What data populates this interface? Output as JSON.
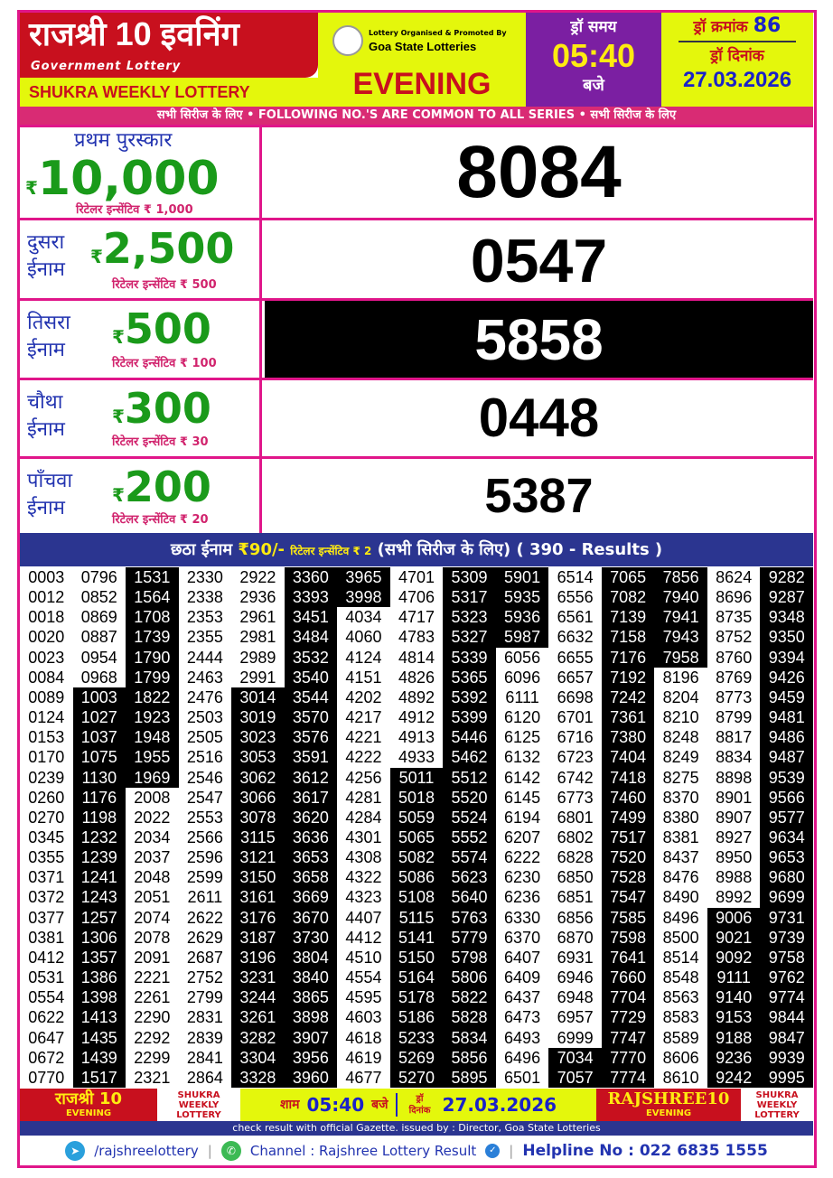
{
  "header": {
    "title": "राजश्री 10 इवनिंग",
    "subtitle": "Government Lottery",
    "lottery_name": "SHUKRA WEEKLY LOTTERY",
    "organised_by": "Lottery Organised & Promoted By",
    "organiser": "Goa State Lotteries",
    "session": "EVENING",
    "draw_time_label": "ड्रॉ समय",
    "draw_time": "05:40",
    "draw_time_suffix": "बजे",
    "draw_no_label": "ड्रॉ क्रमांक",
    "draw_no": "86",
    "draw_date_label": "ड्रॉ दिनांक",
    "draw_date": "27.03.2026"
  },
  "banner": "सभी सिरीज के लिए  •  FOLLOWING NO.'S ARE COMMON TO ALL SERIES  • सभी सिरीज के लिए",
  "prizes": [
    {
      "name": "प्रथम पुरस्कार",
      "currency": "₹",
      "amount": "10,000",
      "retailer": "रिटेलर इन्सेंटिव ₹ 1,000",
      "number": "8084"
    },
    {
      "name1": "दुसरा",
      "name2": "ईनाम",
      "currency": "₹",
      "amount": "2,500",
      "retailer": "रिटेलर इन्सेंटिव ₹ 500",
      "number": "0547"
    },
    {
      "name1": "तिसरा",
      "name2": "ईनाम",
      "currency": "₹",
      "amount": "500",
      "retailer": "रिटेलर इन्सेंटिव ₹ 100",
      "number": "5858"
    },
    {
      "name1": "चौथा",
      "name2": "ईनाम",
      "currency": "₹",
      "amount": "300",
      "retailer": "रिटेलर इन्सेंटिव ₹ 30",
      "number": "0448"
    },
    {
      "name1": "पाँचवा",
      "name2": "ईनाम",
      "currency": "₹",
      "amount": "200",
      "retailer": "रिटेलर इन्सेंटिव ₹ 20",
      "number": "5387"
    }
  ],
  "sixth": {
    "name": "छठा ईनाम",
    "amount": "₹90/-",
    "retailer": "रिटेलर इन्सेंटिव ₹ 2",
    "note": "(सभी सिरीज के लिए)",
    "count": "( 390 - Results )"
  },
  "results_columns": [
    [
      "0003",
      "0012",
      "0018",
      "0020",
      "0023",
      "0084",
      "0089",
      "0124",
      "0153",
      "0170",
      "0239",
      "0260",
      "0270",
      "0345",
      "0355",
      "0371",
      "0372",
      "0377",
      "0381",
      "0412",
      "0531",
      "0554",
      "0622",
      "0647",
      "0672",
      "0770"
    ],
    [
      "0796",
      "0852",
      "0869",
      "0887",
      "0954",
      "0968",
      "1003",
      "1027",
      "1037",
      "1075",
      "1130",
      "1176",
      "1198",
      "1232",
      "1239",
      "1241",
      "1243",
      "1257",
      "1306",
      "1357",
      "1386",
      "1398",
      "1413",
      "1435",
      "1439",
      "1517"
    ],
    [
      "1531",
      "1564",
      "1708",
      "1739",
      "1790",
      "1799",
      "1822",
      "1923",
      "1948",
      "1955",
      "1969",
      "2008",
      "2022",
      "2034",
      "2037",
      "2048",
      "2051",
      "2074",
      "2078",
      "2091",
      "2221",
      "2261",
      "2290",
      "2292",
      "2299",
      "2321"
    ],
    [
      "2330",
      "2338",
      "2353",
      "2355",
      "2444",
      "2463",
      "2476",
      "2503",
      "2505",
      "2516",
      "2546",
      "2547",
      "2553",
      "2566",
      "2596",
      "2599",
      "2611",
      "2622",
      "2629",
      "2687",
      "2752",
      "2799",
      "2831",
      "2839",
      "2841",
      "2864"
    ],
    [
      "2922",
      "2936",
      "2961",
      "2981",
      "2989",
      "2991",
      "3014",
      "3019",
      "3023",
      "3053",
      "3062",
      "3066",
      "3078",
      "3115",
      "3121",
      "3150",
      "3161",
      "3176",
      "3187",
      "3196",
      "3231",
      "3244",
      "3261",
      "3282",
      "3304",
      "3328"
    ],
    [
      "3360",
      "3393",
      "3451",
      "3484",
      "3532",
      "3540",
      "3544",
      "3570",
      "3576",
      "3591",
      "3612",
      "3617",
      "3620",
      "3636",
      "3653",
      "3658",
      "3669",
      "3670",
      "3730",
      "3804",
      "3840",
      "3865",
      "3898",
      "3907",
      "3956",
      "3960"
    ],
    [
      "3965",
      "3998",
      "4034",
      "4060",
      "4124",
      "4151",
      "4202",
      "4217",
      "4221",
      "4222",
      "4256",
      "4281",
      "4284",
      "4301",
      "4308",
      "4322",
      "4323",
      "4407",
      "4412",
      "4510",
      "4554",
      "4595",
      "4603",
      "4618",
      "4619",
      "4677"
    ],
    [
      "4701",
      "4706",
      "4717",
      "4783",
      "4814",
      "4826",
      "4892",
      "4912",
      "4913",
      "4933",
      "5011",
      "5018",
      "5059",
      "5065",
      "5082",
      "5086",
      "5108",
      "5115",
      "5141",
      "5150",
      "5164",
      "5178",
      "5186",
      "5233",
      "5269",
      "5270"
    ],
    [
      "5309",
      "5317",
      "5323",
      "5327",
      "5339",
      "5365",
      "5392",
      "5399",
      "5446",
      "5462",
      "5512",
      "5520",
      "5524",
      "5552",
      "5574",
      "5623",
      "5640",
      "5763",
      "5779",
      "5798",
      "5806",
      "5822",
      "5828",
      "5834",
      "5856",
      "5895"
    ],
    [
      "5901",
      "5935",
      "5936",
      "5987",
      "6056",
      "6096",
      "6111",
      "6120",
      "6125",
      "6132",
      "6142",
      "6145",
      "6194",
      "6207",
      "6222",
      "6230",
      "6236",
      "6330",
      "6370",
      "6407",
      "6409",
      "6437",
      "6473",
      "6493",
      "6496",
      "6501"
    ],
    [
      "6514",
      "6556",
      "6561",
      "6632",
      "6655",
      "6657",
      "6698",
      "6701",
      "6716",
      "6723",
      "6742",
      "6773",
      "6801",
      "6802",
      "6828",
      "6850",
      "6851",
      "6856",
      "6870",
      "6931",
      "6946",
      "6948",
      "6957",
      "6999",
      "7034",
      "7057"
    ],
    [
      "7065",
      "7082",
      "7139",
      "7158",
      "7176",
      "7192",
      "7242",
      "7361",
      "7380",
      "7404",
      "7418",
      "7460",
      "7499",
      "7517",
      "7520",
      "7528",
      "7547",
      "7585",
      "7598",
      "7641",
      "7660",
      "7704",
      "7729",
      "7747",
      "7770",
      "7774"
    ],
    [
      "7856",
      "7940",
      "7941",
      "7943",
      "7958",
      "8196",
      "8204",
      "8210",
      "8248",
      "8249",
      "8275",
      "8370",
      "8380",
      "8381",
      "8437",
      "8476",
      "8490",
      "8496",
      "8500",
      "8514",
      "8548",
      "8563",
      "8583",
      "8589",
      "8606",
      "8610"
    ],
    [
      "8624",
      "8696",
      "8735",
      "8752",
      "8760",
      "8769",
      "8773",
      "8799",
      "8817",
      "8834",
      "8898",
      "8901",
      "8907",
      "8927",
      "8950",
      "8988",
      "8992",
      "9006",
      "9021",
      "9092",
      "9111",
      "9140",
      "9153",
      "9188",
      "9236",
      "9242"
    ],
    [
      "9282",
      "9287",
      "9348",
      "9350",
      "9394",
      "9426",
      "9459",
      "9481",
      "9486",
      "9487",
      "9539",
      "9566",
      "9577",
      "9634",
      "9653",
      "9680",
      "9699",
      "9731",
      "9739",
      "9758",
      "9762",
      "9774",
      "9844",
      "9847",
      "9939",
      "9995"
    ]
  ],
  "footer": {
    "logo_left": "राजश्री 10",
    "logo_left_sub": "EVENING",
    "weekly": "SHUKRA WEEKLY LOTTERY",
    "time_prefix": "शाम",
    "time": "05:40",
    "time_suffix": "बजे",
    "date_label": "ड्रॉ दिनांक",
    "date": "27.03.2026",
    "logo_right": "RAJSHREE10",
    "logo_right_sub": "EVENING",
    "gazette": "check result with official Gazette. issued by : Director, Goa State Lotteries",
    "telegram": "/rajshreelottery",
    "channel": "Channel : Rajshree Lottery Result",
    "helpline": "Helpline No : 022 6835 1555"
  },
  "colors": {
    "frame": "#e0168a",
    "red": "#c8101e",
    "yellow": "#e4f70c",
    "purple": "#7b1fa2",
    "navy": "#2b3590",
    "green": "#1a9a1a"
  }
}
